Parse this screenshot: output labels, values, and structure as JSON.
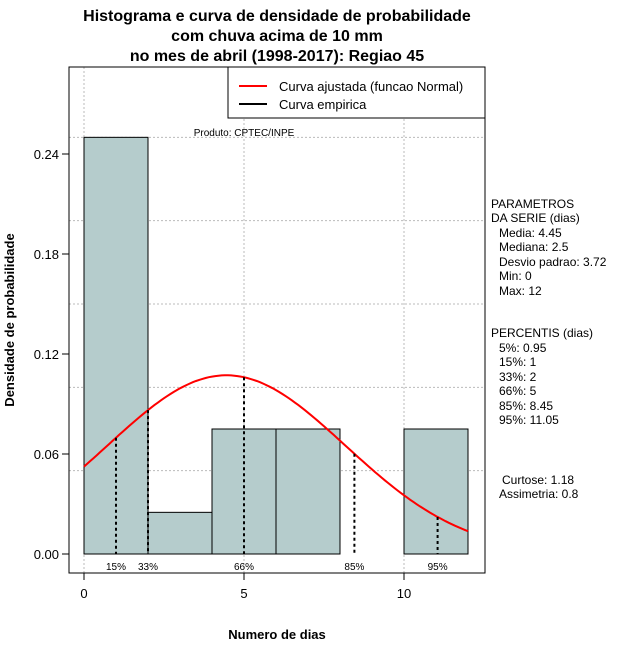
{
  "chart_data": {
    "type": "bar",
    "title": [
      "Histograma e curva de densidade de probabilidade",
      "com chuva acima de 10 mm",
      "no mes de abril (1998-2017): Regiao 45"
    ],
    "xlabel": "Numero de dias",
    "ylabel": "Densidade de probabilidade",
    "xlim": [
      -1,
      12.5
    ],
    "ylim": [
      -0.012,
      0.29
    ],
    "xticks": [
      0,
      5,
      10
    ],
    "xtick_labels": [
      "0",
      "5",
      "10"
    ],
    "yticks": [
      0,
      0.06,
      0.12,
      0.18,
      0.24
    ],
    "ytick_labels": [
      "0.00",
      "0.06",
      "0.12",
      "0.18",
      "0.24"
    ],
    "grid_x": [
      0,
      5,
      10
    ],
    "grid_y": [
      0.05,
      0.1,
      0.15,
      0.2,
      0.25
    ],
    "bins": [
      {
        "from": 0,
        "to": 2,
        "density": 0.25
      },
      {
        "from": 2,
        "to": 4,
        "density": 0.025
      },
      {
        "from": 4,
        "to": 6,
        "density": 0.075
      },
      {
        "from": 6,
        "to": 8,
        "density": 0.075
      },
      {
        "from": 8,
        "to": 10,
        "density": 0
      },
      {
        "from": 10,
        "to": 12,
        "density": 0.075
      }
    ],
    "bar_color": "#b5cccc",
    "normal_curve": {
      "mean": 4.45,
      "sd": 3.72,
      "range": [
        0,
        12
      ],
      "color": "#ff0000"
    },
    "percentile_lines": [
      {
        "label": "15%",
        "x": 1
      },
      {
        "label": "33%",
        "x": 2
      },
      {
        "label": "66%",
        "x": 5
      },
      {
        "label": "85%",
        "x": 8.45
      },
      {
        "label": "95%",
        "x": 11.05
      }
    ],
    "legend": {
      "placement": "top-right",
      "entries": [
        {
          "label": "Curva ajustada (funcao Normal)",
          "color": "#ff0000"
        },
        {
          "label": "Curva empirica",
          "color": "#000000"
        }
      ]
    },
    "annotation": "Produto: CPTEC/INPE"
  },
  "side": {
    "params_title": [
      "PARAMETROS",
      "DA SERIE (dias)"
    ],
    "params": [
      "Media: 4.45",
      "Mediana: 2.5",
      "Desvio padrao: 3.72",
      "Min: 0",
      "Max: 12"
    ],
    "perc_title": "PERCENTIS (dias)",
    "percentis": [
      "5%: 0.95",
      "15%: 1",
      "33%: 2",
      "66%: 5",
      "85%: 8.45",
      "95%: 11.05"
    ],
    "shape": [
      "Curtose: 1.18",
      "Assimetria: 0.8"
    ]
  }
}
